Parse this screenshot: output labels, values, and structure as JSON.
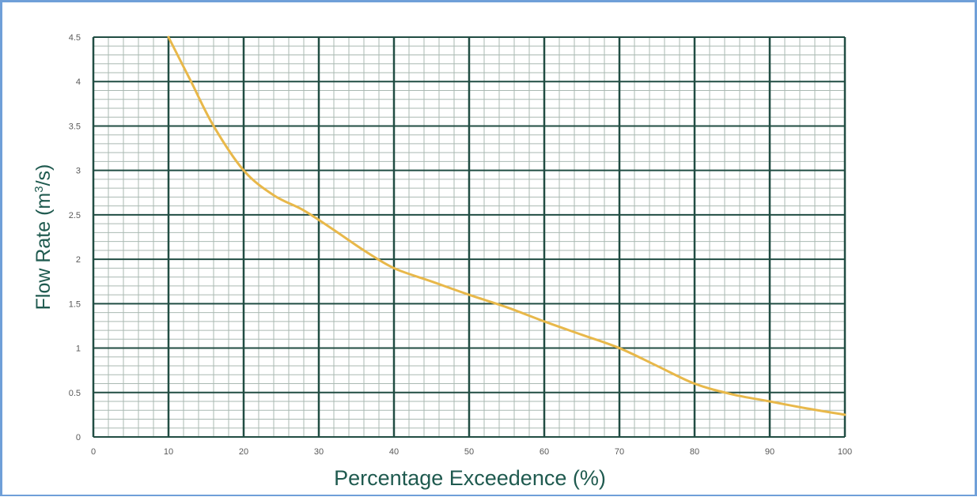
{
  "colors": {
    "major_grid": "#214d43",
    "minor_grid": "#aab9b2",
    "plot_bg": "#ffffff",
    "series": "#e8b84a",
    "axis_title": "#1f5a4f",
    "tick_label": "#595959",
    "frame": "#6f9fd8"
  },
  "chart_data": {
    "type": "line",
    "title": "",
    "xlabel": "Percentage Exceedence (%)",
    "ylabel": "Flow Rate (m",
    "ylabel_superscript": "3",
    "ylabel_suffix": "/s)",
    "xlim": [
      0,
      100
    ],
    "ylim": [
      0,
      4.5
    ],
    "grid": true,
    "minor_grid": true,
    "x_ticks": [
      "0",
      "10",
      "20",
      "30",
      "40",
      "50",
      "60",
      "70",
      "80",
      "90",
      "100"
    ],
    "y_ticks": [
      "0",
      "0.5",
      "1",
      "1.5",
      "2",
      "2.5",
      "3",
      "3.5",
      "4",
      "4.5"
    ],
    "x_tick_values": [
      0,
      10,
      20,
      30,
      40,
      50,
      60,
      70,
      80,
      90,
      100
    ],
    "y_tick_values": [
      0,
      0.5,
      1,
      1.5,
      2,
      2.5,
      3,
      3.5,
      4,
      4.5
    ],
    "series": [
      {
        "x": [
          10,
          13,
          16,
          20,
          24,
          28,
          32,
          36,
          40,
          45,
          50,
          55,
          60,
          65,
          70,
          75,
          80,
          85,
          90,
          95,
          100
        ],
        "y": [
          4.5,
          4.0,
          3.5,
          3.0,
          2.72,
          2.55,
          2.33,
          2.1,
          1.9,
          1.75,
          1.6,
          1.46,
          1.3,
          1.15,
          1.0,
          0.8,
          0.6,
          0.48,
          0.4,
          0.32,
          0.25
        ]
      }
    ]
  }
}
